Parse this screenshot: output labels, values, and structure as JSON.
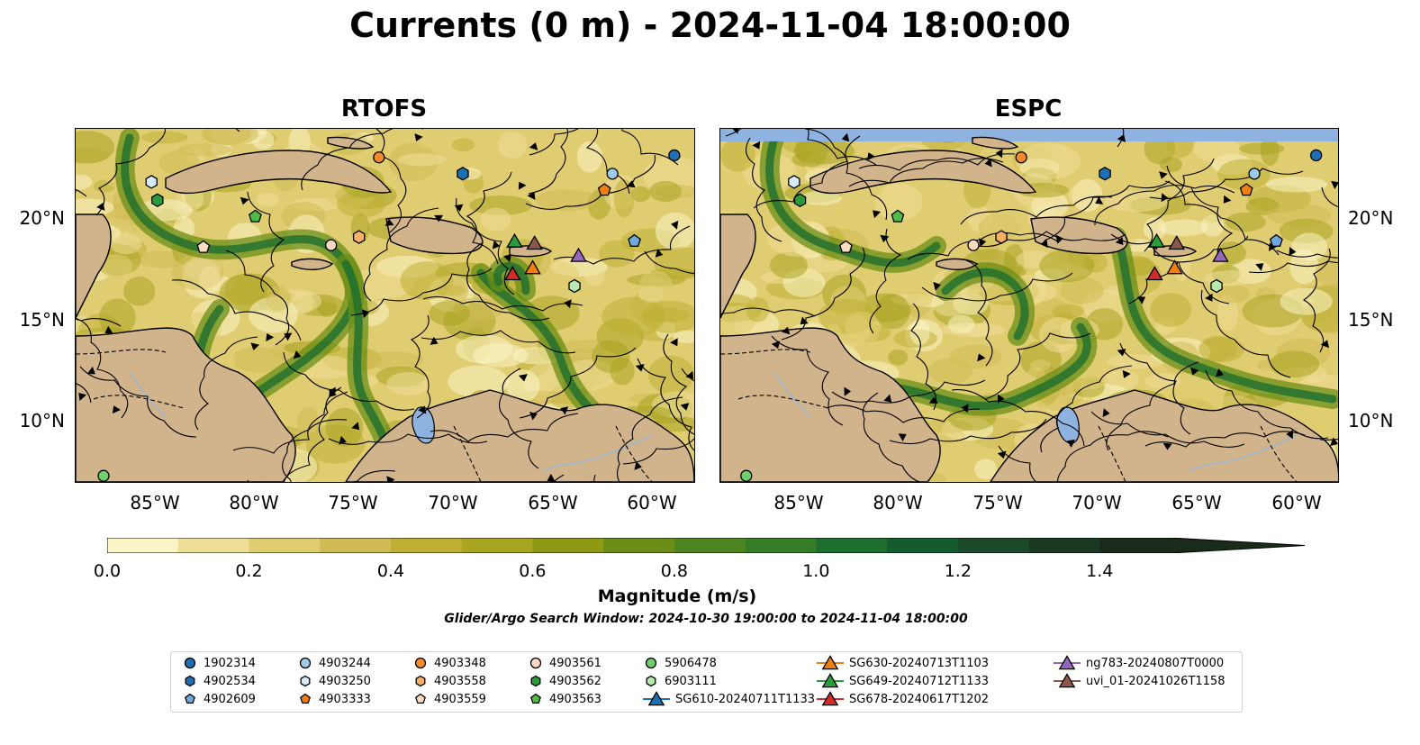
{
  "title": "Currents (0 m) - 2024-11-04 18:00:00",
  "panels": [
    {
      "title": "RTOFS"
    },
    {
      "title": "ESPC"
    }
  ],
  "axes": {
    "lat_ticks": [
      "20°N",
      "15°N",
      "10°N"
    ],
    "lon_ticks": [
      "85°W",
      "80°W",
      "75°W",
      "70°W",
      "65°W",
      "60°W"
    ]
  },
  "colorbar": {
    "label": "Magnitude (m/s)",
    "ticks": [
      "0.0",
      "0.2",
      "0.4",
      "0.6",
      "0.8",
      "1.0",
      "1.2",
      "1.4"
    ],
    "range": [
      0,
      1.5
    ],
    "extend": "max",
    "colors": [
      "#fbf4c6",
      "#efdf98",
      "#e0cd72",
      "#d1bb55",
      "#bfb035",
      "#a9a422",
      "#8e9a14",
      "#6b8d17",
      "#4f8520",
      "#357d27",
      "#1d6e2f",
      "#145b2e",
      "#1a4a2a",
      "#1b3a24",
      "#1a2b1c"
    ]
  },
  "search_window": "Glider/Argo Search Window: 2024-10-30 19:00:00 to 2024-11-04 18:00:00",
  "legend": [
    {
      "label": "1902314",
      "marker": "circle",
      "color": "#1f6fb4"
    },
    {
      "label": "4902534",
      "marker": "hexagon",
      "color": "#1f6fb4"
    },
    {
      "label": "4902609",
      "marker": "pentagon",
      "color": "#6fa8dc"
    },
    {
      "label": "4903244",
      "marker": "circle",
      "color": "#9ecae9"
    },
    {
      "label": "4903250",
      "marker": "hexagon",
      "color": "#d6ebfa"
    },
    {
      "label": "4903333",
      "marker": "pentagon",
      "color": "#f07f10"
    },
    {
      "label": "4903348",
      "marker": "circle",
      "color": "#f58a2a"
    },
    {
      "label": "4903558",
      "marker": "hexagon",
      "color": "#fbb068"
    },
    {
      "label": "4903559",
      "marker": "pentagon",
      "color": "#fddcc0"
    },
    {
      "label": "4903561",
      "marker": "circle",
      "color": "#fdd9c0"
    },
    {
      "label": "4903562",
      "marker": "hexagon",
      "color": "#2a9d3a"
    },
    {
      "label": "4903563",
      "marker": "pentagon",
      "color": "#4fbb45"
    },
    {
      "label": "5906478",
      "marker": "circle",
      "color": "#6fcf6a"
    },
    {
      "label": "6903111",
      "marker": "hexagon",
      "color": "#b6e8b0"
    },
    {
      "label": "SG610-20240711T1133",
      "marker": "triangle-line",
      "color": "#1f6fb4"
    },
    {
      "label": "SG630-20240713T1103",
      "marker": "triangle-line",
      "color": "#f07f10"
    },
    {
      "label": "SG649-20240712T1133",
      "marker": "triangle-line",
      "color": "#2a9d3a"
    },
    {
      "label": "SG678-20240617T1202",
      "marker": "triangle-line",
      "color": "#d42a2a"
    },
    {
      "label": "ng783-20240807T0000",
      "marker": "triangle-line",
      "color": "#9467bd"
    },
    {
      "label": "uvi_01-20241026T1158",
      "marker": "triangle-line",
      "color": "#8c564b"
    }
  ],
  "map_colors": {
    "land": "#d2b48c",
    "water_body": "#8eb3e0",
    "no_data": "#8eb3e0"
  },
  "platforms": [
    {
      "id": "1902314",
      "lon": -59.0,
      "lat": 23.0
    },
    {
      "id": "4902534",
      "lon": -69.6,
      "lat": 22.1
    },
    {
      "id": "4902609",
      "lon": -61.0,
      "lat": 18.8
    },
    {
      "id": "4903244",
      "lon": -62.1,
      "lat": 22.1
    },
    {
      "id": "4903250",
      "lon": -85.2,
      "lat": 21.7
    },
    {
      "id": "4903333",
      "lon": -62.5,
      "lat": 21.3
    },
    {
      "id": "4903348",
      "lon": -73.8,
      "lat": 22.9
    },
    {
      "id": "4903558",
      "lon": -74.8,
      "lat": 19.0
    },
    {
      "id": "4903559",
      "lon": -82.6,
      "lat": 18.5
    },
    {
      "id": "4903561",
      "lon": -76.2,
      "lat": 18.6
    },
    {
      "id": "4903562",
      "lon": -84.9,
      "lat": 20.8
    },
    {
      "id": "4903563",
      "lon": -80.0,
      "lat": 20.0
    },
    {
      "id": "5906478",
      "lon": -87.6,
      "lat": 7.3
    },
    {
      "id": "6903111",
      "lon": -64.0,
      "lat": 16.6
    },
    {
      "id": "SG649-20240712T1133",
      "lon": -67.0,
      "lat": 18.8
    },
    {
      "id": "uvi_01-20241026T1158",
      "lon": -66.0,
      "lat": 18.7
    },
    {
      "id": "ng783-20240807T0000",
      "lon": -63.8,
      "lat": 18.1
    },
    {
      "id": "SG630-20240713T1103",
      "lon": -66.1,
      "lat": 17.5
    },
    {
      "id": "SG678-20240617T1202",
      "lon": -67.1,
      "lat": 17.2
    }
  ]
}
